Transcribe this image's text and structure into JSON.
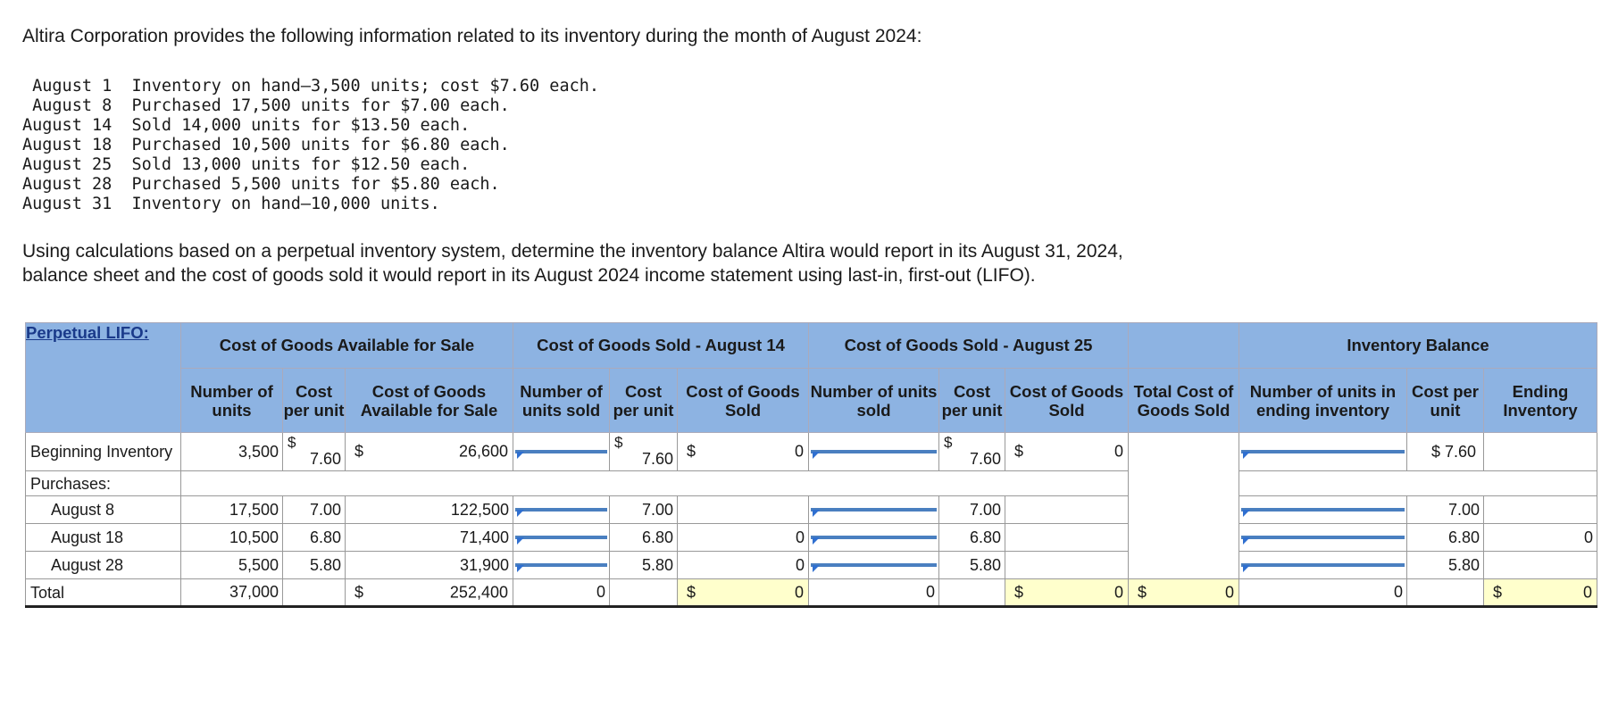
{
  "intro": "Altira Corporation provides the following information related to its inventory during the month of August 2024:",
  "transactions": [
    " August 1  Inventory on hand—3,500 units; cost $7.60 each.",
    " August 8  Purchased 17,500 units for $7.00 each.",
    "August 14  Sold 14,000 units for $13.50 each.",
    "August 18  Purchased 10,500 units for $6.80 each.",
    "August 25  Sold 13,000 units for $12.50 each.",
    "August 28  Purchased 5,500 units for $5.80 each.",
    "August 31  Inventory on hand—10,000 units."
  ],
  "question_line1": "Using calculations based on a perpetual inventory system, determine the inventory balance Altira would report in its August 31, 2024,",
  "question_line2": "balance sheet and the cost of goods sold it would report in its August 2024 income statement using last-in, first-out (LIFO).",
  "table": {
    "corner_label": "Perpetual LIFO:",
    "groups": {
      "cogas": "Cost of Goods Available for Sale",
      "cogs14": "Cost of Goods Sold - August 14",
      "cogs25": "Cost of Goods Sold - August 25",
      "inv": "Inventory Balance"
    },
    "headers": {
      "units": "Number of units",
      "cpu": "Cost per unit",
      "cogas": "Cost of Goods Available for Sale",
      "units_sold": "Number of units sold",
      "cogs": "Cost of Goods Sold",
      "total_cogs": "Total Cost of Goods Sold",
      "units_end": "Number of units in ending inventory",
      "cost_per_unit": "Cost per unit",
      "ending_inv": "Ending Inventory"
    },
    "dollar": "$",
    "rows": {
      "beginning": {
        "label": "Beginning Inventory",
        "units": "3,500",
        "cpu": "7.60",
        "cogas": "26,600",
        "cpu14": "7.60",
        "cogs14": "0",
        "cpu25": "7.60",
        "cogs25": "0",
        "inv_cpu": "$ 7.60"
      },
      "purchases_label": "Purchases:",
      "aug8": {
        "label": "August 8",
        "units": "17,500",
        "cpu": "7.00",
        "cogas": "122,500",
        "cpu14": "7.00",
        "cpu25": "7.00",
        "inv_cpu": "7.00"
      },
      "aug18": {
        "label": "August 18",
        "units": "10,500",
        "cpu": "6.80",
        "cogas": "71,400",
        "cpu14": "6.80",
        "cogs14": "0",
        "cpu25": "6.80",
        "inv_cpu": "6.80",
        "ending": "0"
      },
      "aug28": {
        "label": "August 28",
        "units": "5,500",
        "cpu": "5.80",
        "cogas": "31,900",
        "cpu14": "5.80",
        "cogs14": "0",
        "cpu25": "5.80",
        "inv_cpu": "5.80"
      },
      "total": {
        "label": "Total",
        "units": "37,000",
        "cogas": "252,400",
        "units_sold14": "0",
        "cogs14": "0",
        "units_sold25": "0",
        "cogs25": "0",
        "total_cogs": "0",
        "units_end": "0",
        "ending": "0"
      }
    }
  }
}
